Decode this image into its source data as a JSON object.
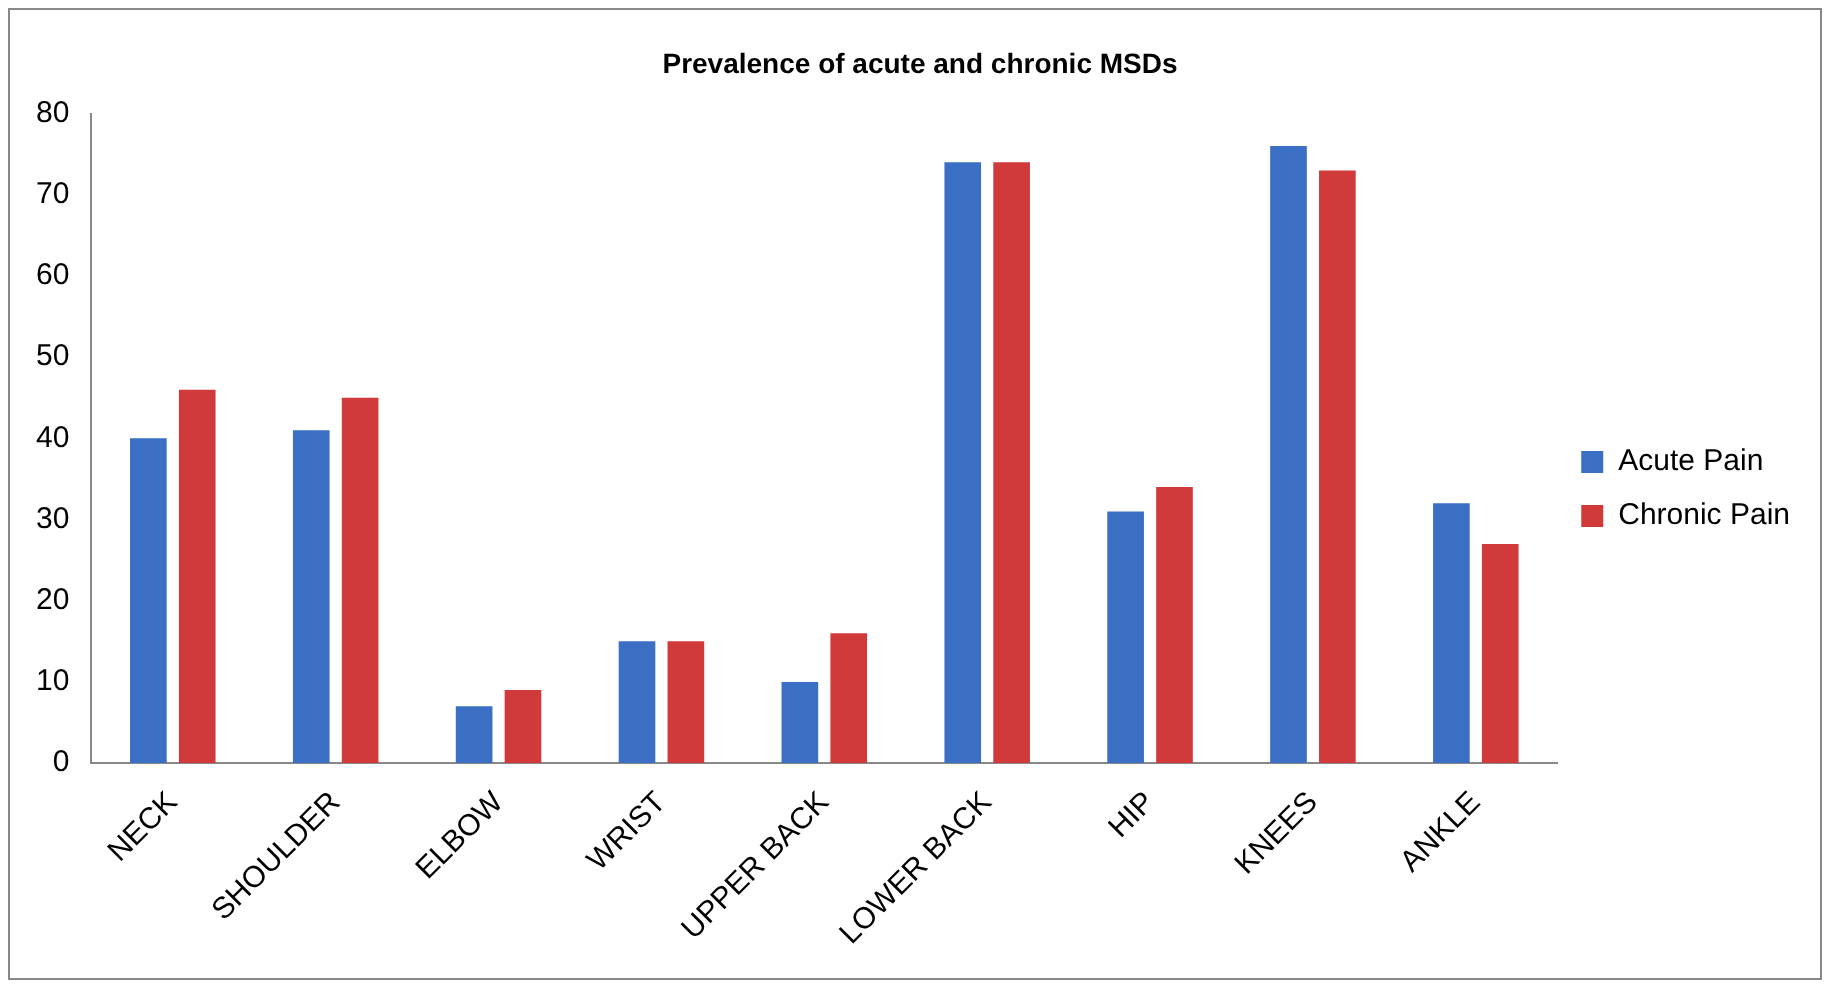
{
  "chart_data": {
    "type": "bar",
    "title": "Prevalence of acute and chronic MSDs",
    "categories": [
      "NECK",
      "SHOULDER",
      "ELBOW",
      "WRIST",
      "UPPER BACK",
      "LOWER BACK",
      "HIP",
      "KNEES",
      "ANKLE"
    ],
    "series": [
      {
        "name": "Acute Pain",
        "color": "#3a6fc4",
        "values": [
          40,
          41,
          7,
          15,
          10,
          74,
          31,
          76,
          32
        ]
      },
      {
        "name": "Chronic Pain",
        "color": "#d03a3a",
        "values": [
          46,
          45,
          9,
          15,
          16,
          74,
          34,
          73,
          27
        ]
      }
    ],
    "ylim": [
      0,
      80
    ],
    "yticks": [
      0,
      10,
      20,
      30,
      40,
      50,
      60,
      70,
      80
    ],
    "grid": false,
    "legend": "right"
  }
}
